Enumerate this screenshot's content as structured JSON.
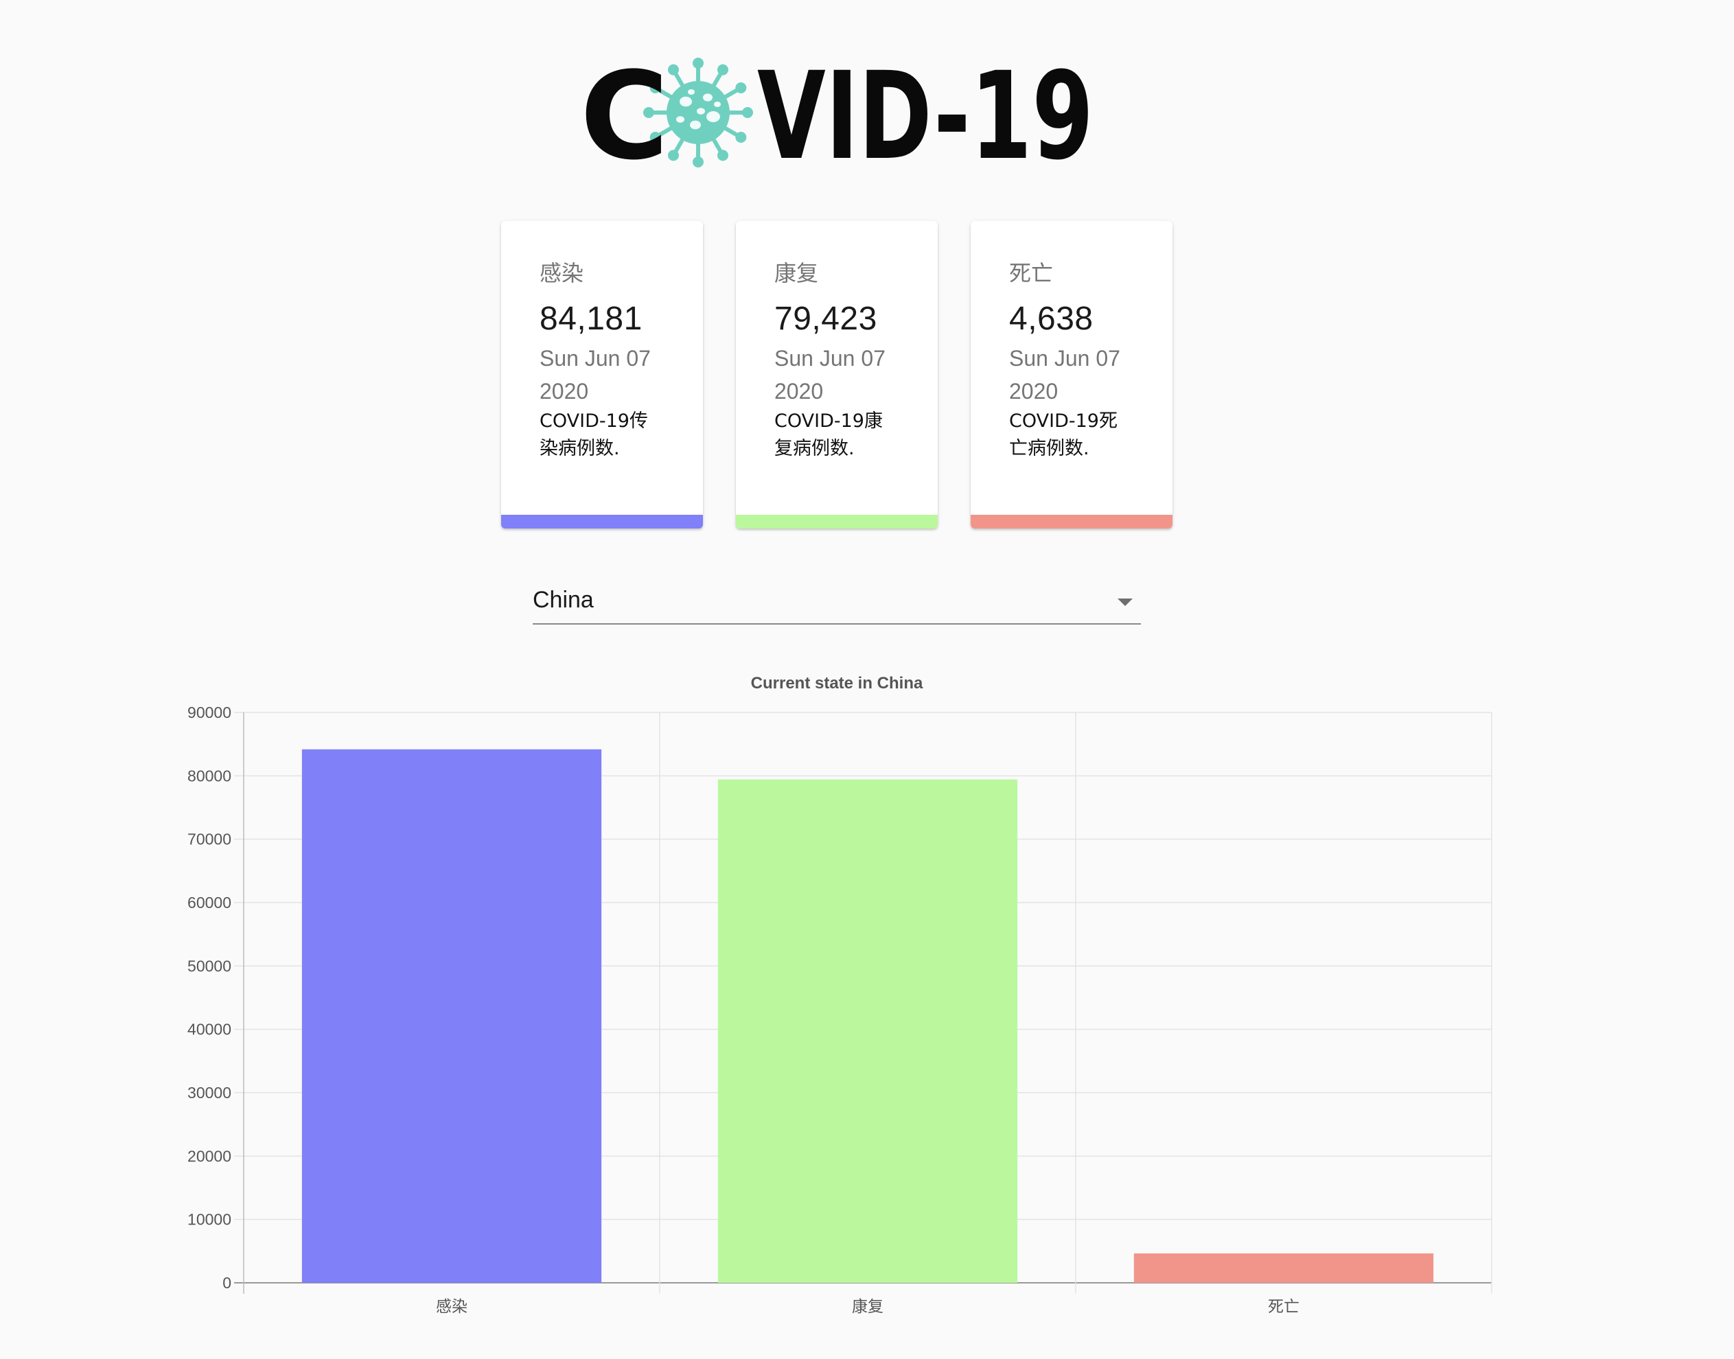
{
  "logo": {
    "text": "COVID-19",
    "virus_color": "#6fd0c0",
    "virus_icon": "coronavirus-icon"
  },
  "cards": [
    {
      "title": "感染",
      "value": "84,181",
      "date": "Sun Jun 07 2020",
      "description": "COVID-19传染病例数.",
      "color": "#8080f8"
    },
    {
      "title": "康复",
      "value": "79,423",
      "date": "Sun Jun 07 2020",
      "description": "COVID-19康复病例数.",
      "color": "#bbf89d"
    },
    {
      "title": "死亡",
      "value": "4,638",
      "date": "Sun Jun 07 2020",
      "description": "COVID-19死亡病例数.",
      "color": "#f1958b"
    }
  ],
  "country_select": {
    "selected": "China"
  },
  "chart_data": {
    "type": "bar",
    "title": "Current state in China",
    "categories": [
      "感染",
      "康复",
      "死亡"
    ],
    "values": [
      84181,
      79423,
      4638
    ],
    "colors": [
      "#8080f8",
      "#bbf89d",
      "#f1958b"
    ],
    "ylim": [
      0,
      90000
    ],
    "yticks": [
      0,
      10000,
      20000,
      30000,
      40000,
      50000,
      60000,
      70000,
      80000,
      90000
    ],
    "grid": true,
    "legend": "none",
    "xlabel": "",
    "ylabel": ""
  }
}
